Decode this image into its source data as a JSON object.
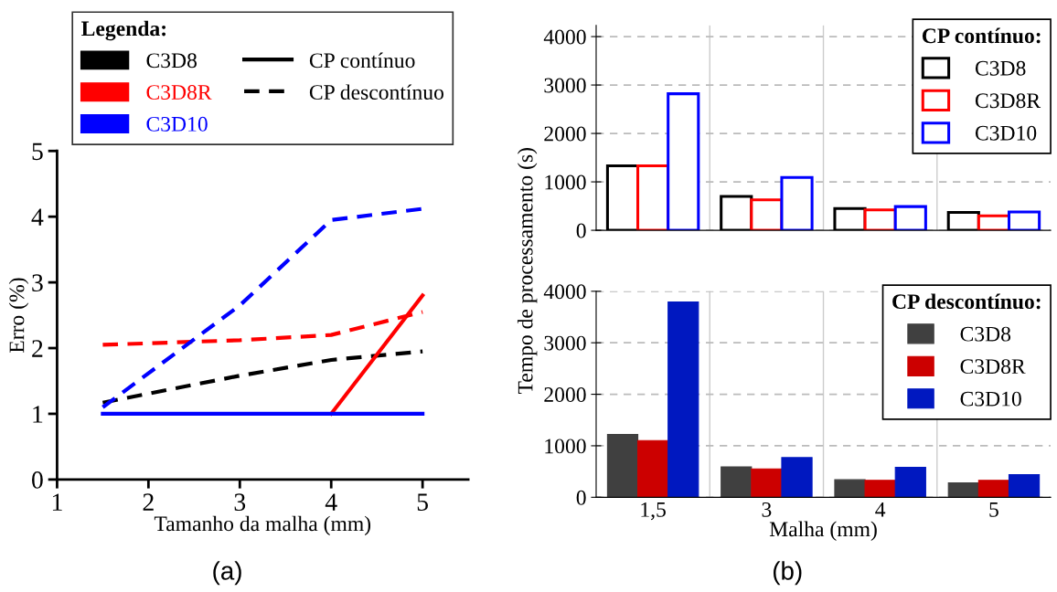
{
  "chart_data": [
    {
      "type": "line",
      "xlabel": "Tamanho da malha (mm)",
      "ylabel": "Erro (%)",
      "legend_title": "Legenda:",
      "legend": "top",
      "xlim": [
        1,
        5.5
      ],
      "xticks": [
        1,
        2,
        3,
        4,
        5
      ],
      "ylim": [
        0,
        5
      ],
      "yticks": [
        0,
        1,
        2,
        3,
        4,
        5
      ],
      "grid": false,
      "x": [
        1.5,
        3,
        4,
        5
      ],
      "series": [
        {
          "name": "C3D8",
          "color": "#000000",
          "line_style": "dashed",
          "values": [
            1.17,
            1.58,
            1.82,
            1.95
          ]
        },
        {
          "name": "C3D8R",
          "color": "#ff0000",
          "line_style": "dashed",
          "values": [
            2.05,
            2.12,
            2.2,
            2.55
          ]
        },
        {
          "name": "C3D10",
          "color": "#0000ff",
          "line_style": "dashed",
          "values": [
            1.1,
            2.65,
            3.95,
            4.12
          ]
        },
        {
          "color": "#ff0000",
          "line_style": "solid",
          "values": [
            null,
            null,
            1,
            2.8
          ]
        },
        {
          "color": "#0000ff",
          "line_style": "solid",
          "values": [
            1,
            1,
            1,
            1
          ]
        }
      ],
      "annotations": [
        "CP contínuo",
        "CP descontínuo",
        "(a)"
      ]
    },
    {
      "type": "bar",
      "legend_title": "CP contínuo:",
      "legend": "top right",
      "categories": [
        "1,5",
        "3",
        "4",
        "5"
      ],
      "ylim": [
        0,
        4230
      ],
      "yticks": [
        0,
        1000,
        2000,
        3000,
        4000
      ],
      "grid": true,
      "tick_labels": "y",
      "series": [
        {
          "name": "C3D8",
          "color": "#000000",
          "values": [
            1330,
            700,
            450,
            370
          ]
        },
        {
          "name": "C3D8R",
          "color": "#ff0000",
          "values": [
            1330,
            630,
            420,
            300
          ]
        },
        {
          "name": "C3D10",
          "color": "#0000ff",
          "values": [
            2820,
            1090,
            490,
            380
          ]
        }
      ]
    },
    {
      "type": "bar",
      "legend_title": "CP descontínuo:",
      "legend": "top right",
      "categories": [
        "1,5",
        "3",
        "4",
        "5"
      ],
      "xlabel": "Malha (mm)",
      "ylabel": "Tempo de processamento (s)",
      "ylim": [
        0,
        4000
      ],
      "yticks": [
        0,
        1000,
        2000,
        3000,
        4000
      ],
      "grid": true,
      "series": [
        {
          "name": "C3D8",
          "color": "#404040",
          "values": [
            1220,
            590,
            340,
            280
          ]
        },
        {
          "name": "C3D8R",
          "color": "#cc0000",
          "values": [
            1100,
            550,
            330,
            330
          ]
        },
        {
          "name": "C3D10",
          "color": "#0018c0",
          "values": [
            3790,
            770,
            580,
            440
          ]
        }
      ],
      "annotations": [
        "(b)"
      ]
    }
  ]
}
